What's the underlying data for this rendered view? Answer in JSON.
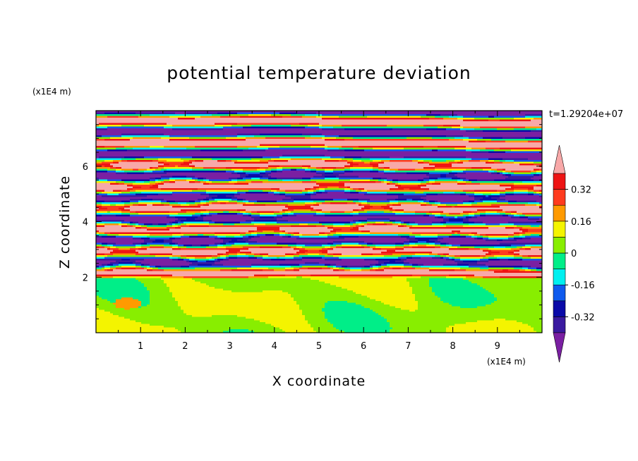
{
  "chart_data": {
    "type": "heatmap",
    "title": "potential temperature deviation",
    "xlabel": "X coordinate",
    "ylabel": "Z coordinate",
    "x_unit": "(x1E4 m)",
    "y_unit": "(x1E4 m)",
    "time_label": "t=1.29204e+07",
    "xlim": [
      0,
      10
    ],
    "ylim": [
      0,
      8
    ],
    "x_ticks": [
      "1",
      "2",
      "3",
      "4",
      "5",
      "6",
      "7",
      "8",
      "9"
    ],
    "y_ticks": [
      "2",
      "4",
      "6"
    ],
    "x_tick_values": [
      1,
      2,
      3,
      4,
      5,
      6,
      7,
      8,
      9
    ],
    "y_tick_values": [
      2,
      4,
      6
    ],
    "grid": false,
    "colorbar": {
      "labels": [
        "0.32",
        "0.16",
        "0",
        "-0.16",
        "-0.32"
      ],
      "label_values": [
        0.32,
        0.16,
        0,
        -0.16,
        -0.32
      ],
      "levels": [
        -0.4,
        -0.32,
        -0.24,
        -0.16,
        -0.08,
        0,
        0.08,
        0.16,
        0.24,
        0.32,
        0.4
      ],
      "colors_low_to_high": [
        "#7a1fa2",
        "#3a1aa0",
        "#0a0aa8",
        "#0f5aee",
        "#00f0f0",
        "#00ee88",
        "#88ee00",
        "#f4f400",
        "#ff9a00",
        "#ff3b1e",
        "#ee1414",
        "#f8a8a8"
      ],
      "extend": "both"
    },
    "layers": [
      {
        "z_min": 0,
        "z_max": 1.95,
        "description_values": "values near 0 to 0.08"
      },
      {
        "z_min": 1.95,
        "z_max": 8,
        "description_values": "alternating bands between -0.4 and 0.4"
      }
    ]
  }
}
